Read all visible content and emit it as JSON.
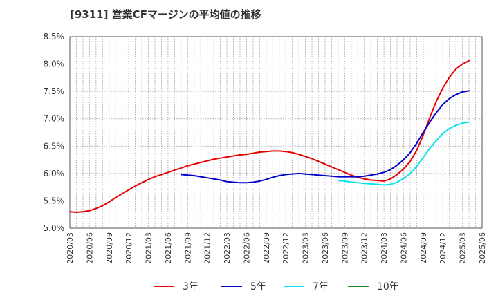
{
  "chart_data": {
    "type": "line",
    "title": "[9311]  営業CFマージンの平均値の推移",
    "xlabel": "",
    "ylabel": "",
    "x_ticks": [
      "2020/03",
      "2020/06",
      "2020/09",
      "2020/12",
      "2021/03",
      "2021/06",
      "2021/09",
      "2021/12",
      "2022/03",
      "2022/06",
      "2022/09",
      "2022/12",
      "2023/03",
      "2023/06",
      "2023/09",
      "2023/12",
      "2024/03",
      "2024/06",
      "2024/09",
      "2024/12",
      "2025/03",
      "2025/06"
    ],
    "y_ticks": [
      "5.0%",
      "5.5%",
      "6.0%",
      "6.5%",
      "7.0%",
      "7.5%",
      "8.0%",
      "8.5%"
    ],
    "ylim": [
      5.0,
      8.5
    ],
    "grid": true,
    "legend_position": "bottom",
    "series": [
      {
        "name": "3年",
        "color": "#e60000",
        "points": [
          [
            "2020/03",
            5.3
          ],
          [
            "2020/04",
            5.29
          ],
          [
            "2020/05",
            5.3
          ],
          [
            "2020/06",
            5.32
          ],
          [
            "2020/07",
            5.36
          ],
          [
            "2020/08",
            5.41
          ],
          [
            "2020/09",
            5.48
          ],
          [
            "2020/10",
            5.56
          ],
          [
            "2020/11",
            5.63
          ],
          [
            "2020/12",
            5.7
          ],
          [
            "2021/01",
            5.77
          ],
          [
            "2021/02",
            5.83
          ],
          [
            "2021/03",
            5.89
          ],
          [
            "2021/04",
            5.94
          ],
          [
            "2021/05",
            5.98
          ],
          [
            "2021/06",
            6.02
          ],
          [
            "2021/07",
            6.06
          ],
          [
            "2021/08",
            6.1
          ],
          [
            "2021/09",
            6.14
          ],
          [
            "2021/10",
            6.17
          ],
          [
            "2021/11",
            6.2
          ],
          [
            "2021/12",
            6.23
          ],
          [
            "2022/01",
            6.26
          ],
          [
            "2022/02",
            6.28
          ],
          [
            "2022/03",
            6.3
          ],
          [
            "2022/04",
            6.32
          ],
          [
            "2022/05",
            6.34
          ],
          [
            "2022/06",
            6.35
          ],
          [
            "2022/07",
            6.37
          ],
          [
            "2022/08",
            6.39
          ],
          [
            "2022/09",
            6.4
          ],
          [
            "2022/10",
            6.41
          ],
          [
            "2022/11",
            6.41
          ],
          [
            "2022/12",
            6.4
          ],
          [
            "2023/01",
            6.38
          ],
          [
            "2023/02",
            6.35
          ],
          [
            "2023/03",
            6.31
          ],
          [
            "2023/04",
            6.27
          ],
          [
            "2023/05",
            6.22
          ],
          [
            "2023/06",
            6.17
          ],
          [
            "2023/07",
            6.12
          ],
          [
            "2023/08",
            6.07
          ],
          [
            "2023/09",
            6.02
          ],
          [
            "2023/10",
            5.97
          ],
          [
            "2023/11",
            5.93
          ],
          [
            "2023/12",
            5.9
          ],
          [
            "2024/01",
            5.88
          ],
          [
            "2024/02",
            5.87
          ],
          [
            "2024/03",
            5.86
          ],
          [
            "2024/04",
            5.9
          ],
          [
            "2024/05",
            5.98
          ],
          [
            "2024/06",
            6.08
          ],
          [
            "2024/07",
            6.22
          ],
          [
            "2024/08",
            6.42
          ],
          [
            "2024/09",
            6.7
          ],
          [
            "2024/10",
            7.02
          ],
          [
            "2024/11",
            7.32
          ],
          [
            "2024/12",
            7.56
          ],
          [
            "2025/01",
            7.76
          ],
          [
            "2025/02",
            7.91
          ],
          [
            "2025/03",
            8.0
          ],
          [
            "2025/04",
            8.06
          ]
        ]
      },
      {
        "name": "5年",
        "color": "#0000cc",
        "points": [
          [
            "2021/08",
            5.98
          ],
          [
            "2021/09",
            5.97
          ],
          [
            "2021/10",
            5.96
          ],
          [
            "2021/11",
            5.94
          ],
          [
            "2021/12",
            5.92
          ],
          [
            "2022/01",
            5.9
          ],
          [
            "2022/02",
            5.88
          ],
          [
            "2022/03",
            5.85
          ],
          [
            "2022/04",
            5.84
          ],
          [
            "2022/05",
            5.83
          ],
          [
            "2022/06",
            5.83
          ],
          [
            "2022/07",
            5.84
          ],
          [
            "2022/08",
            5.86
          ],
          [
            "2022/09",
            5.89
          ],
          [
            "2022/10",
            5.93
          ],
          [
            "2022/11",
            5.96
          ],
          [
            "2022/12",
            5.98
          ],
          [
            "2023/01",
            5.99
          ],
          [
            "2023/02",
            6.0
          ],
          [
            "2023/03",
            5.99
          ],
          [
            "2023/04",
            5.98
          ],
          [
            "2023/05",
            5.97
          ],
          [
            "2023/06",
            5.96
          ],
          [
            "2023/07",
            5.95
          ],
          [
            "2023/08",
            5.94
          ],
          [
            "2023/09",
            5.94
          ],
          [
            "2023/10",
            5.94
          ],
          [
            "2023/11",
            5.94
          ],
          [
            "2023/12",
            5.95
          ],
          [
            "2024/01",
            5.97
          ],
          [
            "2024/02",
            5.99
          ],
          [
            "2024/03",
            6.02
          ],
          [
            "2024/04",
            6.07
          ],
          [
            "2024/05",
            6.15
          ],
          [
            "2024/06",
            6.25
          ],
          [
            "2024/07",
            6.38
          ],
          [
            "2024/08",
            6.55
          ],
          [
            "2024/09",
            6.75
          ],
          [
            "2024/10",
            6.94
          ],
          [
            "2024/11",
            7.11
          ],
          [
            "2024/12",
            7.26
          ],
          [
            "2025/01",
            7.37
          ],
          [
            "2025/02",
            7.44
          ],
          [
            "2025/03",
            7.49
          ],
          [
            "2025/04",
            7.51
          ]
        ]
      },
      {
        "name": "7年",
        "color": "#00e5ee",
        "points": [
          [
            "2023/08",
            5.87
          ],
          [
            "2023/09",
            5.86
          ],
          [
            "2023/10",
            5.84
          ],
          [
            "2023/11",
            5.83
          ],
          [
            "2023/12",
            5.82
          ],
          [
            "2024/01",
            5.81
          ],
          [
            "2024/02",
            5.8
          ],
          [
            "2024/03",
            5.79
          ],
          [
            "2024/04",
            5.8
          ],
          [
            "2024/05",
            5.84
          ],
          [
            "2024/06",
            5.91
          ],
          [
            "2024/07",
            6.0
          ],
          [
            "2024/08",
            6.13
          ],
          [
            "2024/09",
            6.29
          ],
          [
            "2024/10",
            6.46
          ],
          [
            "2024/11",
            6.6
          ],
          [
            "2024/12",
            6.73
          ],
          [
            "2025/01",
            6.82
          ],
          [
            "2025/02",
            6.88
          ],
          [
            "2025/03",
            6.92
          ],
          [
            "2025/04",
            6.94
          ]
        ]
      },
      {
        "name": "10年",
        "color": "#228b22",
        "points": []
      }
    ]
  }
}
